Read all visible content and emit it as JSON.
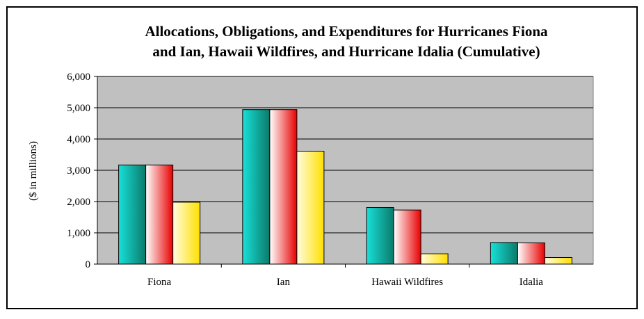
{
  "chart_data": {
    "type": "bar",
    "title_line1": "Allocations, Obligations, and Expenditures for Hurricanes Fiona",
    "title_line2": "and Ian, Hawaii Wildfires, and Hurricane Idalia (Cumulative)",
    "xlabel": "",
    "ylabel": "($ in millions)",
    "ylim": [
      0,
      6000
    ],
    "yticks": [
      0,
      1000,
      2000,
      3000,
      4000,
      5000,
      6000
    ],
    "ytick_labels": [
      "0",
      "1,000",
      "2,000",
      "3,000",
      "4,000",
      "5,000",
      "6,000"
    ],
    "grid": true,
    "legend": "none",
    "categories": [
      "Fiona",
      "Ian",
      "Hawaii Wildfires",
      "Idalia"
    ],
    "series": [
      {
        "values": [
          3170,
          4940,
          1810,
          690
        ],
        "colors": [
          "#18e0d8",
          "#0b7a6a"
        ]
      },
      {
        "values": [
          3170,
          4940,
          1730,
          680
        ],
        "colors": [
          "#ffffff",
          "#e80000"
        ]
      },
      {
        "values": [
          1980,
          3610,
          330,
          210
        ],
        "colors": [
          "#fffce0",
          "#ffe000"
        ]
      }
    ],
    "plot_background": "#c0c0c0"
  }
}
